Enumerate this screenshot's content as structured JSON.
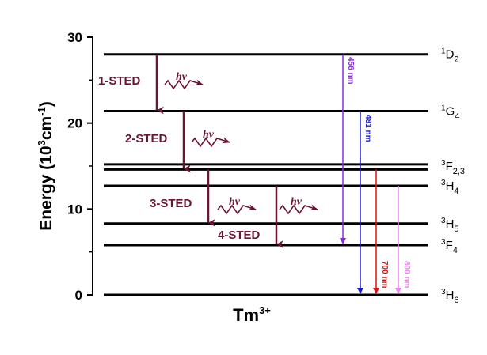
{
  "diagram": {
    "ion_label": "Tm",
    "ion_charge": "3+",
    "y_axis": {
      "title_main": "Energy (10",
      "title_sup1": "3",
      "title_mid": "cm",
      "title_sup2": "-1",
      "title_end": ")",
      "ticks": [
        "0",
        "10",
        "20",
        "30"
      ],
      "range": [
        0,
        30
      ]
    },
    "levels": [
      {
        "id": "1D2",
        "energy": 28.0,
        "sup": "1",
        "base": "D",
        "sub": "2"
      },
      {
        "id": "1G4",
        "energy": 21.4,
        "sup": "1",
        "base": "G",
        "sub": "4"
      },
      {
        "id": "3F2",
        "energy": 15.2,
        "sup": "3",
        "base": "F",
        "sub": "2,3"
      },
      {
        "id": "3F3",
        "energy": 14.6,
        "sup": "",
        "base": "",
        "sub": ""
      },
      {
        "id": "3H4",
        "energy": 12.7,
        "sup": "3",
        "base": "H",
        "sub": "4"
      },
      {
        "id": "3H5",
        "energy": 8.3,
        "sup": "3",
        "base": "H",
        "sub": "5"
      },
      {
        "id": "3F4",
        "energy": 5.8,
        "sup": "3",
        "base": "F",
        "sub": "4"
      },
      {
        "id": "3H6",
        "energy": 0.0,
        "sup": "3",
        "base": "H",
        "sub": "6"
      }
    ],
    "sted_transitions": [
      {
        "label": "1-STED",
        "from": 28.0,
        "to": 21.4,
        "hv": "hν"
      },
      {
        "label": "2-STED",
        "from": 21.4,
        "to": 14.6,
        "hv": "hν"
      },
      {
        "label": "3-STED",
        "from": 14.6,
        "to": 8.3,
        "hv": "hν"
      },
      {
        "label": "4-STED",
        "from": 12.7,
        "to": 5.8,
        "hv": "hν"
      }
    ],
    "emissions": [
      {
        "label": "456 nm",
        "from": 28.0,
        "to": 5.8,
        "color": "#8a2be2"
      },
      {
        "label": "481 nm",
        "from": 21.4,
        "to": 0.0,
        "color": "#1a1adb"
      },
      {
        "label": "700 nm",
        "from": 14.6,
        "to": 0.0,
        "color": "#e01010"
      },
      {
        "label": "800 nm",
        "from": 12.7,
        "to": 0.0,
        "color": "#ee82ee"
      }
    ],
    "colors": {
      "sted": "#6b1535",
      "level": "#000000"
    }
  }
}
